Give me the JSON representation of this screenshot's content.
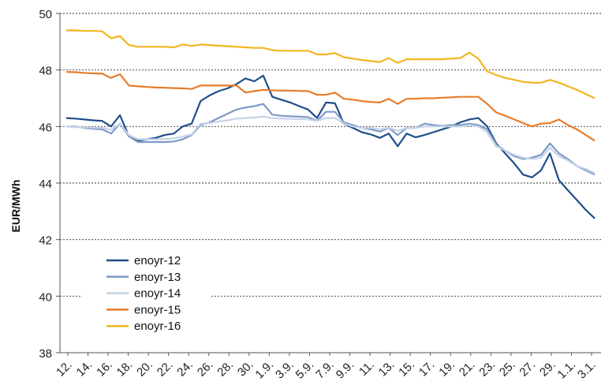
{
  "chart_data": {
    "type": "line",
    "ylabel": "EUR/MWh",
    "ylim": [
      38,
      50
    ],
    "yticks": [
      "50",
      "48",
      "46",
      "44",
      "42",
      "40",
      "38"
    ],
    "grid": "horizontal dashed",
    "legend_position": "bottom-left",
    "x_labels": [
      "12.",
      "14.",
      "16.",
      "18.",
      "20.",
      "22.",
      "24.",
      "26.",
      "28.",
      "30.",
      "1.9.",
      "3.9.",
      "5.9.",
      "7.9.",
      "9.9.",
      "11.",
      "13.",
      "15.",
      "17.",
      "19.",
      "21.",
      "23.",
      "25.",
      "27.",
      "29.",
      "1.1.",
      "3.1."
    ],
    "series": [
      {
        "name": "enoyr-12",
        "color": "#1f4e8c",
        "values": [
          46.3,
          46.28,
          46.25,
          46.22,
          46.2,
          46.0,
          46.4,
          45.65,
          45.5,
          45.55,
          45.6,
          45.7,
          45.75,
          46.0,
          46.1,
          46.9,
          47.1,
          47.25,
          47.35,
          47.5,
          47.7,
          47.6,
          47.8,
          47.05,
          46.95,
          46.85,
          46.72,
          46.6,
          46.3,
          46.85,
          46.82,
          46.1,
          45.95,
          45.8,
          45.72,
          45.6,
          45.75,
          45.3,
          45.75,
          45.62,
          45.7,
          45.8,
          45.9,
          46.0,
          46.15,
          46.25,
          46.3,
          46.0,
          45.4,
          45.05,
          44.7,
          44.3,
          44.2,
          44.45,
          45.05,
          44.1,
          43.75,
          43.4,
          43.05,
          42.75
        ]
      },
      {
        "name": "enoyr-13",
        "color": "#7f9ac7",
        "values": [
          46.0,
          46.0,
          45.95,
          45.92,
          45.9,
          45.75,
          46.1,
          45.65,
          45.45,
          45.45,
          45.45,
          45.45,
          45.47,
          45.55,
          45.7,
          46.05,
          46.15,
          46.3,
          46.45,
          46.6,
          46.67,
          46.72,
          46.8,
          46.42,
          46.38,
          46.36,
          46.35,
          46.33,
          46.2,
          46.52,
          46.52,
          46.15,
          46.05,
          45.95,
          45.9,
          45.82,
          45.95,
          45.7,
          45.95,
          45.95,
          46.1,
          46.05,
          46.02,
          46.05,
          46.05,
          46.1,
          46.05,
          45.9,
          45.35,
          45.15,
          44.95,
          44.85,
          44.9,
          45.0,
          45.4,
          45.05,
          44.85,
          44.6,
          44.45,
          44.3
        ]
      },
      {
        "name": "enoyr-14",
        "color": "#c5d3e8",
        "values": [
          46.0,
          45.98,
          45.97,
          45.96,
          45.95,
          45.88,
          46.1,
          45.7,
          45.55,
          45.55,
          45.55,
          45.56,
          45.58,
          45.65,
          45.72,
          46.1,
          46.12,
          46.18,
          46.22,
          46.28,
          46.3,
          46.32,
          46.35,
          46.3,
          46.28,
          46.27,
          46.26,
          46.25,
          46.2,
          46.3,
          46.3,
          46.1,
          46.0,
          45.95,
          45.95,
          45.9,
          45.95,
          45.85,
          45.95,
          45.95,
          46.0,
          46.0,
          46.0,
          46.0,
          46.0,
          46.05,
          46.0,
          45.8,
          45.3,
          45.15,
          45.0,
          44.9,
          44.85,
          44.9,
          45.25,
          44.95,
          44.8,
          44.6,
          44.5,
          44.35
        ]
      },
      {
        "name": "enoyr-15",
        "color": "#e87c2a",
        "values": [
          47.93,
          47.92,
          47.9,
          47.88,
          47.87,
          47.72,
          47.85,
          47.45,
          47.42,
          47.4,
          47.38,
          47.37,
          47.36,
          47.35,
          47.33,
          47.45,
          47.45,
          47.45,
          47.45,
          47.45,
          47.2,
          47.25,
          47.3,
          47.28,
          47.27,
          47.27,
          47.26,
          47.25,
          47.12,
          47.12,
          47.2,
          46.98,
          46.95,
          46.9,
          46.87,
          46.85,
          46.98,
          46.8,
          46.98,
          46.98,
          47.0,
          47.0,
          47.02,
          47.03,
          47.05,
          47.05,
          47.05,
          46.8,
          46.5,
          46.38,
          46.25,
          46.12,
          46.0,
          46.1,
          46.12,
          46.25,
          46.05,
          45.9,
          45.7,
          45.5
        ]
      },
      {
        "name": "enoyr-16",
        "color": "#f2b51f",
        "values": [
          49.4,
          49.4,
          49.38,
          49.38,
          49.37,
          49.12,
          49.2,
          48.88,
          48.82,
          48.82,
          48.82,
          48.82,
          48.8,
          48.9,
          48.85,
          48.9,
          48.88,
          48.86,
          48.84,
          48.82,
          48.8,
          48.78,
          48.78,
          48.7,
          48.68,
          48.68,
          48.68,
          48.68,
          48.55,
          48.55,
          48.6,
          48.45,
          48.4,
          48.35,
          48.32,
          48.28,
          48.42,
          48.25,
          48.38,
          48.38,
          48.38,
          48.38,
          48.38,
          48.4,
          48.42,
          48.62,
          48.4,
          47.95,
          47.82,
          47.72,
          47.65,
          47.58,
          47.55,
          47.55,
          47.65,
          47.55,
          47.42,
          47.3,
          47.15,
          47.0
        ]
      }
    ]
  }
}
